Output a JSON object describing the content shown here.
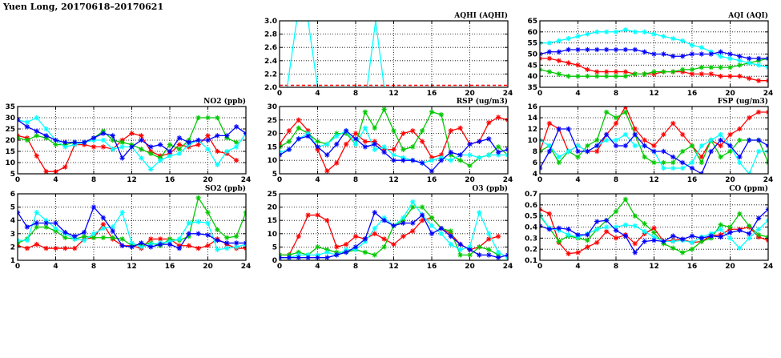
{
  "page": {
    "title": "Yuen Long, 20170618–20170621"
  },
  "colors": {
    "day1": "#ff0000",
    "day2": "#00c800",
    "day3": "#00ffff",
    "day4": "#0000ff",
    "threshold": "#ff0000"
  },
  "chart_data": [
    {
      "id": "aqhi",
      "type": "line",
      "title": "AQHI (AQHI)",
      "xlim": [
        0,
        24
      ],
      "ylim": [
        2.0,
        3.0
      ],
      "xticks": [
        "0",
        "4",
        "8",
        "12",
        "16",
        "20",
        "24"
      ],
      "yticks": [
        "2.0",
        "2.2",
        "2.4",
        "2.6",
        "2.8",
        "3.0"
      ],
      "grid": true,
      "reference_lines": [
        {
          "y": 2.03,
          "style": "dashed",
          "color": "#ff0000"
        }
      ],
      "series": [
        {
          "color": "#00ffff",
          "points": [
            [
              0.8,
              2.0
            ],
            [
              1.8,
              3.0
            ],
            [
              3.0,
              3.0
            ],
            [
              4.0,
              2.0
            ],
            [
              9.2,
              2.0
            ],
            [
              10.1,
              3.0
            ],
            [
              11.0,
              2.0
            ]
          ]
        }
      ]
    },
    {
      "id": "aqi",
      "type": "line",
      "title": "AQI (AQI)",
      "xlim": [
        0,
        24
      ],
      "ylim": [
        35,
        65
      ],
      "xticks": [
        "0",
        "4",
        "8",
        "12",
        "16",
        "20",
        "24"
      ],
      "yticks": [
        "35",
        "40",
        "45",
        "50",
        "55",
        "60",
        "65"
      ],
      "grid": true,
      "series": [
        {
          "color": "#ff0000",
          "values": [
            48,
            48,
            47,
            46,
            45,
            43,
            42,
            42,
            42,
            42,
            41,
            41,
            41,
            42,
            42,
            42,
            41,
            41,
            41,
            40,
            40,
            40,
            39,
            38,
            38
          ]
        },
        {
          "color": "#00c800",
          "values": [
            43,
            42,
            41,
            40,
            40,
            40,
            40,
            40,
            40,
            40,
            41,
            41,
            42,
            42,
            42,
            43,
            43,
            44,
            44,
            44,
            44,
            45,
            46,
            47,
            48
          ]
        },
        {
          "color": "#00ffff",
          "values": [
            55,
            55,
            56,
            57,
            58,
            59,
            60,
            60,
            60,
            61,
            60,
            60,
            59,
            58,
            57,
            56,
            54,
            53,
            51,
            49,
            48,
            47,
            46,
            45,
            44
          ]
        },
        {
          "color": "#0000ff",
          "values": [
            50,
            51,
            51,
            52,
            52,
            52,
            52,
            52,
            52,
            52,
            52,
            51,
            50,
            50,
            49,
            49,
            50,
            50,
            50,
            51,
            50,
            49,
            48,
            48,
            48
          ]
        }
      ]
    },
    {
      "id": "no2",
      "type": "line",
      "title": "NO2 (ppb)",
      "xlim": [
        0,
        24
      ],
      "ylim": [
        5,
        35
      ],
      "xticks": [
        "0",
        "4",
        "8",
        "12",
        "16",
        "20",
        "24"
      ],
      "yticks": [
        "5",
        "10",
        "15",
        "20",
        "25",
        "30",
        "35"
      ],
      "grid": true,
      "series": [
        {
          "color": "#ff0000",
          "values": [
            22,
            21,
            13,
            6,
            6,
            8,
            18,
            18,
            17,
            17,
            16,
            20,
            23,
            22,
            15,
            13,
            14,
            18,
            17,
            18,
            22,
            15,
            14,
            11,
            null
          ]
        },
        {
          "color": "#00c800",
          "values": [
            21,
            20,
            22,
            21,
            18,
            18,
            19,
            19,
            21,
            24,
            20,
            19,
            18,
            16,
            14,
            12,
            18,
            16,
            20,
            30,
            30,
            30,
            21,
            19,
            null
          ]
        },
        {
          "color": "#00ffff",
          "values": [
            29,
            28,
            30,
            25,
            20,
            17,
            18,
            19,
            20,
            20,
            16,
            17,
            17,
            12,
            7,
            11,
            13,
            14,
            18,
            20,
            16,
            9,
            15,
            17,
            23
          ]
        },
        {
          "color": "#0000ff",
          "values": [
            29,
            26,
            24,
            22,
            20,
            19,
            19,
            19,
            21,
            23,
            22,
            12,
            17,
            20,
            17,
            18,
            15,
            21,
            19,
            20,
            20,
            22,
            22,
            26,
            23
          ]
        }
      ]
    },
    {
      "id": "rsp",
      "type": "line",
      "title": "RSP (ug/m3)",
      "xlim": [
        0,
        24
      ],
      "ylim": [
        5,
        30
      ],
      "xticks": [
        "0",
        "4",
        "8",
        "12",
        "16",
        "20",
        "24"
      ],
      "yticks": [
        "5",
        "10",
        "15",
        "20",
        "25",
        "30"
      ],
      "grid": true,
      "series": [
        {
          "color": "#ff0000",
          "values": [
            16,
            21,
            25,
            21,
            14,
            6,
            9,
            16,
            20,
            17,
            17,
            14,
            14,
            20,
            21,
            17,
            11,
            12,
            21,
            22,
            16,
            17,
            24,
            26,
            25
          ]
        },
        {
          "color": "#00c800",
          "values": [
            15,
            17,
            22,
            20,
            17,
            16,
            20,
            20,
            16,
            28,
            22,
            29,
            21,
            14,
            15,
            21,
            28,
            27,
            12,
            10,
            8,
            11,
            12,
            15,
            12
          ]
        },
        {
          "color": "#00ffff",
          "values": [
            13,
            14,
            18,
            20,
            15,
            16,
            19,
            21,
            16,
            22,
            14,
            15,
            12,
            11,
            10,
            9,
            10,
            11,
            10,
            12,
            12,
            11,
            12,
            12,
            12
          ]
        },
        {
          "color": "#0000ff",
          "values": [
            12,
            14,
            18,
            19,
            15,
            12,
            16,
            21,
            18,
            15,
            16,
            13,
            10,
            10,
            10,
            9,
            6,
            10,
            13,
            12,
            16,
            17,
            18,
            13,
            14
          ]
        }
      ]
    },
    {
      "id": "fsp",
      "type": "line",
      "title": "FSP (ug/m3)",
      "xlim": [
        0,
        24
      ],
      "ylim": [
        4,
        16
      ],
      "xticks": [
        "0",
        "4",
        "8",
        "12",
        "16",
        "20",
        "24"
      ],
      "yticks": [
        "4",
        "6",
        "8",
        "10",
        "12",
        "14",
        "16"
      ],
      "grid": true,
      "series": [
        {
          "color": "#ff0000",
          "values": [
            8,
            13,
            12,
            8,
            9,
            8,
            8,
            11,
            13,
            16,
            12,
            10,
            9,
            11,
            13,
            11,
            9,
            7,
            10,
            9,
            11,
            12,
            14,
            15,
            15
          ]
        },
        {
          "color": "#00c800",
          "values": [
            8,
            9,
            6,
            8,
            7,
            9,
            10,
            15,
            14,
            15,
            11,
            7,
            6,
            6,
            6,
            8,
            9,
            6,
            10,
            7,
            8,
            10,
            10,
            10,
            6
          ]
        },
        {
          "color": "#00ffff",
          "values": [
            10,
            9,
            7,
            8,
            9,
            8,
            9,
            10,
            10,
            11,
            9,
            9,
            8,
            5,
            5,
            5,
            6,
            9,
            10,
            11,
            9,
            6,
            4,
            8,
            8
          ]
        },
        {
          "color": "#0000ff",
          "values": [
            5,
            8,
            12,
            12,
            8,
            8,
            9,
            11,
            9,
            9,
            11,
            9,
            8,
            8,
            7,
            6,
            5,
            4,
            8,
            10,
            9,
            7,
            10,
            10,
            9
          ]
        }
      ]
    },
    {
      "id": "so2",
      "type": "line",
      "title": "SO2 (ppb)",
      "xlim": [
        0,
        24
      ],
      "ylim": [
        1,
        6
      ],
      "xticks": [
        "0",
        "4",
        "8",
        "12",
        "16",
        "20",
        "24"
      ],
      "yticks": [
        "1",
        "2",
        "3",
        "4",
        "5",
        "6"
      ],
      "grid": true,
      "series": [
        {
          "color": "#ff0000",
          "values": [
            2.1,
            1.9,
            2.2,
            1.9,
            1.9,
            1.9,
            1.9,
            2.6,
            2.7,
            3.7,
            2.6,
            2.1,
            2.1,
            1.9,
            2.6,
            2.6,
            2.6,
            2.1,
            2.1,
            1.9,
            2.1,
            2.6,
            2.2,
            1.9,
            1.9
          ]
        },
        {
          "color": "#00c800",
          "values": [
            2.3,
            2.6,
            3.5,
            3.5,
            3.2,
            2.7,
            2.6,
            2.8,
            2.7,
            2.7,
            2.7,
            2.6,
            2.1,
            2.2,
            2.3,
            2.1,
            2.6,
            2.5,
            2.8,
            5.7,
            4.6,
            3.3,
            2.7,
            2.8,
            4.6
          ]
        },
        {
          "color": "#00ffff",
          "values": [
            2.5,
            2.5,
            4.6,
            4.0,
            3.4,
            3.0,
            2.6,
            2.5,
            3.0,
            3.4,
            3.5,
            4.6,
            2.3,
            2.0,
            2.2,
            2.3,
            2.4,
            2.6,
            3.8,
            3.9,
            3.8,
            1.8,
            1.9,
            2.0,
            2.2
          ]
        },
        {
          "color": "#0000ff",
          "values": [
            4.6,
            3.5,
            3.8,
            3.8,
            3.8,
            3.1,
            2.8,
            3.1,
            5.0,
            4.2,
            3.2,
            2.1,
            2.0,
            2.3,
            2.0,
            2.2,
            2.2,
            1.9,
            3.0,
            3.0,
            2.9,
            2.5,
            2.3,
            2.3,
            2.3
          ]
        }
      ]
    },
    {
      "id": "o3",
      "type": "line",
      "title": "O3 (ppb)",
      "xlim": [
        0,
        24
      ],
      "ylim": [
        0,
        25
      ],
      "xticks": [
        "0",
        "4",
        "8",
        "12",
        "16",
        "20",
        "24"
      ],
      "yticks": [
        "0",
        "5",
        "10",
        "15",
        "20",
        "25"
      ],
      "grid": true,
      "series": [
        {
          "color": "#ff0000",
          "values": [
            2,
            2,
            9,
            17,
            17,
            15,
            5,
            6,
            9,
            8,
            10,
            8,
            6,
            9,
            11,
            15,
            16,
            12,
            10,
            6,
            4,
            5,
            8,
            9,
            null
          ]
        },
        {
          "color": "#00c800",
          "values": [
            2,
            2,
            3,
            2,
            5,
            4,
            3,
            3,
            4,
            3,
            2,
            5,
            13,
            15,
            20,
            20,
            16,
            12,
            11,
            2,
            2,
            5,
            4,
            2,
            null
          ]
        },
        {
          "color": "#00ffff",
          "values": [
            1,
            1,
            2,
            2,
            2,
            3,
            2,
            4,
            4,
            7,
            12,
            16,
            13,
            16,
            22,
            17,
            13,
            10,
            6,
            4,
            5,
            18,
            10,
            3,
            1
          ]
        },
        {
          "color": "#0000ff",
          "values": [
            1,
            1,
            1,
            1,
            1,
            1,
            2,
            3,
            5,
            8,
            18,
            15,
            13,
            14,
            14,
            17,
            10,
            12,
            9,
            6,
            4,
            2,
            2,
            1,
            2
          ]
        }
      ]
    },
    {
      "id": "co",
      "type": "line",
      "title": "CO (ppm)",
      "xlim": [
        0,
        24
      ],
      "ylim": [
        0.1,
        0.7
      ],
      "xticks": [
        "0",
        "4",
        "8",
        "12",
        "16",
        "20",
        "24"
      ],
      "yticks": [
        "0.1",
        "0.2",
        "0.3",
        "0.4",
        "0.5",
        "0.6",
        "0.7"
      ],
      "grid": true,
      "series": [
        {
          "color": "#ff0000",
          "values": [
            0.56,
            0.52,
            0.26,
            0.16,
            0.17,
            0.22,
            0.26,
            0.36,
            0.3,
            0.33,
            0.25,
            0.34,
            0.39,
            0.27,
            0.28,
            0.29,
            0.26,
            0.27,
            0.32,
            0.33,
            0.38,
            0.38,
            0.4,
            0.31,
            0.28
          ]
        },
        {
          "color": "#00c800",
          "values": [
            0.5,
            0.39,
            0.27,
            0.32,
            0.3,
            0.28,
            0.38,
            0.46,
            0.54,
            0.65,
            0.5,
            0.43,
            0.35,
            0.25,
            0.21,
            0.17,
            0.2,
            0.27,
            0.3,
            0.42,
            0.4,
            0.52,
            0.41,
            0.33,
            0.31
          ]
        },
        {
          "color": "#00ffff",
          "values": [
            0.51,
            0.39,
            0.37,
            0.33,
            0.31,
            0.34,
            0.38,
            0.4,
            0.4,
            0.42,
            0.41,
            0.36,
            0.31,
            0.27,
            0.27,
            0.28,
            0.26,
            0.31,
            0.34,
            0.38,
            0.3,
            0.21,
            0.3,
            0.38,
            0.46
          ]
        },
        {
          "color": "#0000ff",
          "values": [
            0.41,
            0.38,
            0.39,
            0.38,
            0.33,
            0.33,
            0.45,
            0.46,
            0.37,
            0.32,
            0.17,
            0.27,
            0.28,
            0.27,
            0.32,
            0.29,
            0.32,
            0.3,
            0.32,
            0.31,
            0.35,
            0.37,
            0.34,
            0.48,
            0.56
          ]
        }
      ]
    }
  ]
}
